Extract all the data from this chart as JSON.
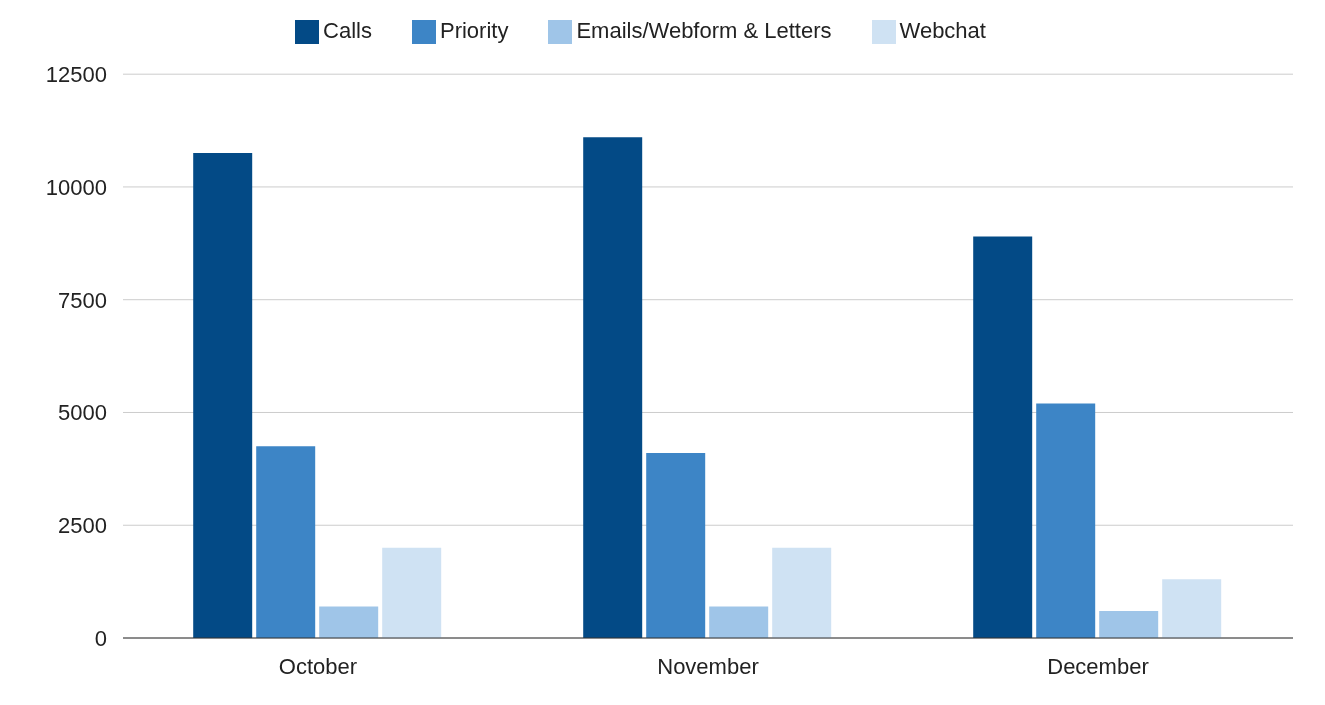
{
  "chart_data": {
    "type": "bar",
    "categories": [
      "October",
      "November",
      "December"
    ],
    "series": [
      {
        "name": "Calls",
        "color": "#034a86",
        "values": [
          10750,
          11100,
          8900
        ]
      },
      {
        "name": "Priority",
        "color": "#3d85c6",
        "values": [
          4250,
          4100,
          5200
        ]
      },
      {
        "name": "Emails/Webform & Letters",
        "color": "#9fc5e8",
        "values": [
          700,
          700,
          600
        ]
      },
      {
        "name": "Webchat",
        "color": "#cfe2f3",
        "values": [
          2000,
          2000,
          1300
        ]
      }
    ],
    "ylim": [
      0,
      12500
    ],
    "yticks": [
      0,
      2500,
      5000,
      7500,
      10000,
      12500
    ],
    "grid": "y",
    "legend": "top"
  }
}
